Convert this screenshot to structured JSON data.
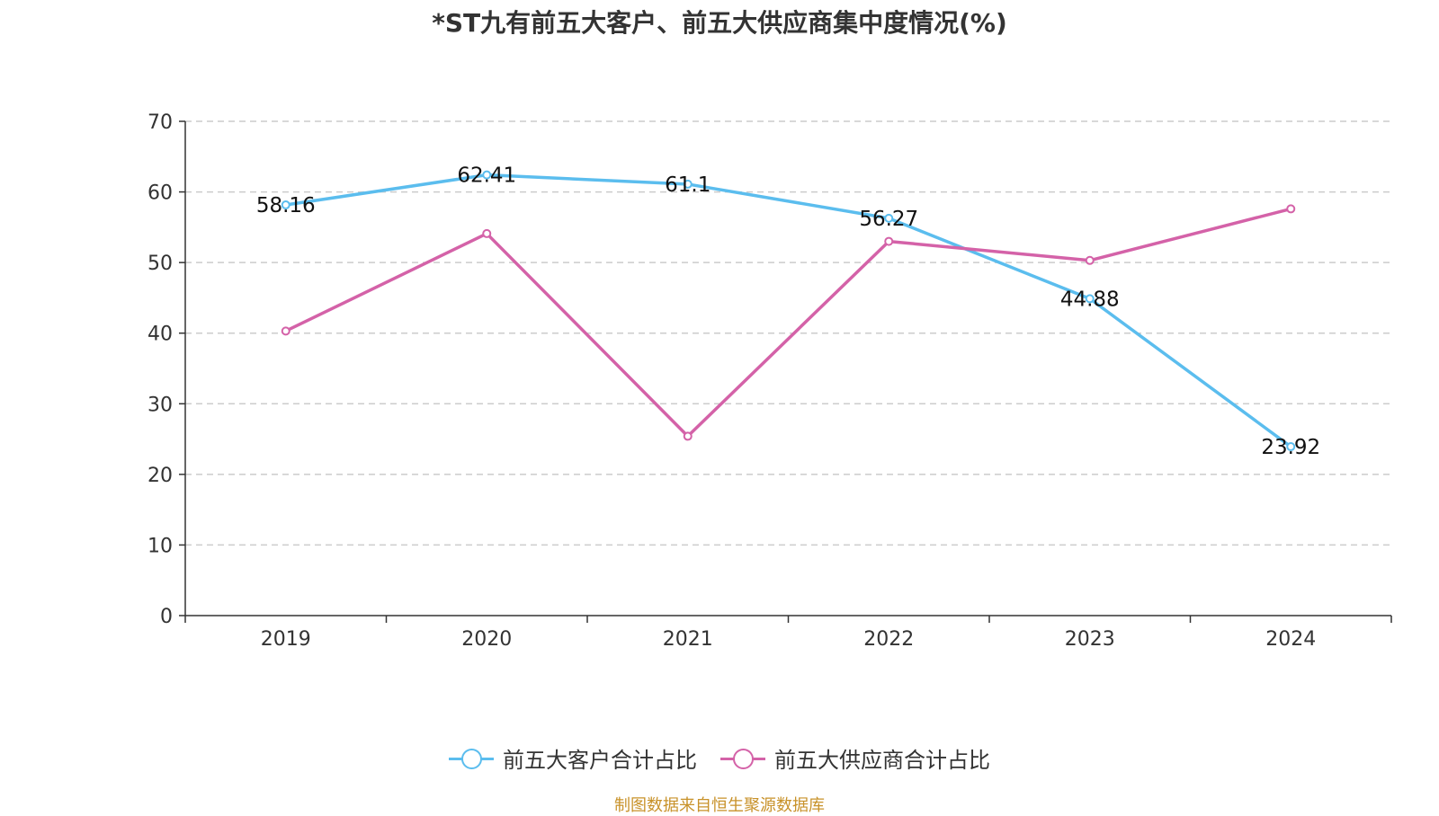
{
  "title": "*ST九有前五大客户、前五大供应商集中度情况(%)",
  "chart_data": {
    "type": "line",
    "categories": [
      "2019",
      "2020",
      "2021",
      "2022",
      "2023",
      "2024"
    ],
    "yticks": [
      "0",
      "10",
      "20",
      "30",
      "40",
      "50",
      "60",
      "70"
    ],
    "ylim": [
      0,
      70
    ],
    "grid": true,
    "legend_position": "bottom",
    "series": [
      {
        "name": "前五大客户合计占比",
        "color": "#5bbdee",
        "values": [
          58.16,
          62.41,
          61.1,
          56.27,
          44.88,
          23.92
        ],
        "labels": [
          "58.16",
          "62.41",
          "61.1",
          "56.27",
          "44.88",
          "23.92"
        ]
      },
      {
        "name": "前五大供应商合计占比",
        "color": "#d462a8",
        "values": [
          40.3,
          54.1,
          25.4,
          53.0,
          50.3,
          57.6
        ],
        "labels": []
      }
    ]
  },
  "source": "制图数据来自恒生聚源数据库"
}
